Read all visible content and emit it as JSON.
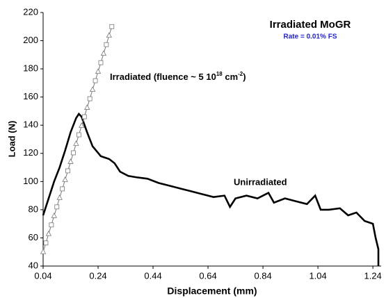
{
  "chart_data": {
    "type": "line",
    "y_label": "Load (N)",
    "x_label": "Displacement (mm)",
    "xlim": [
      0.04,
      1.27
    ],
    "xticks": [
      0.04,
      0.24,
      0.44,
      0.64,
      0.84,
      1.04,
      1.24
    ],
    "ylim": [
      40,
      220
    ],
    "yticks": [
      40,
      60,
      80,
      100,
      120,
      140,
      160,
      180,
      200,
      220
    ],
    "grid": false,
    "series": [
      {
        "color": "#000000",
        "marker": "none",
        "x": [
          0.04,
          0.06,
          0.08,
          0.1,
          0.12,
          0.14,
          0.16,
          0.17,
          0.18,
          0.2,
          0.22,
          0.25,
          0.28,
          0.3,
          0.32,
          0.35,
          0.38,
          0.42,
          0.46,
          0.5,
          0.54,
          0.58,
          0.62,
          0.66,
          0.7,
          0.72,
          0.74,
          0.78,
          0.82,
          0.86,
          0.88,
          0.92,
          0.96,
          1.0,
          1.03,
          1.05,
          1.08,
          1.12,
          1.15,
          1.18,
          1.21,
          1.24,
          1.25,
          1.26,
          1.26
        ],
        "values": [
          76,
          88,
          100,
          110,
          122,
          135,
          145,
          148,
          146,
          135,
          125,
          118,
          116,
          113,
          107,
          104,
          103,
          102,
          99,
          97,
          95,
          93,
          91,
          89,
          90,
          82,
          88,
          90,
          88,
          92,
          85,
          88,
          86,
          84,
          90,
          80,
          80,
          81,
          76,
          78,
          72,
          70,
          60,
          52,
          40
        ]
      },
      {
        "color": "#777777",
        "marker": "triangle-square",
        "x": [
          0.04,
          0.05,
          0.06,
          0.07,
          0.08,
          0.09,
          0.1,
          0.11,
          0.12,
          0.13,
          0.14,
          0.15,
          0.16,
          0.17,
          0.18,
          0.19,
          0.2,
          0.21,
          0.22,
          0.23,
          0.24,
          0.25,
          0.26,
          0.27,
          0.28,
          0.29
        ],
        "values": [
          50,
          56.4,
          62.8,
          69.2,
          75.6,
          82,
          88.4,
          94.8,
          101.2,
          107.6,
          114,
          120.4,
          126.8,
          133.2,
          139.6,
          146,
          152.4,
          158.8,
          165.2,
          171.6,
          178,
          184.4,
          190.8,
          197.2,
          203.6,
          210
        ]
      }
    ],
    "annotations": {
      "title": "Irradiated MoGR",
      "rate": "Rate = 0.01% FS",
      "irradiated": [
        "Irradiated (fluence ~ 5 10",
        "18",
        " cm",
        "-2",
        ")"
      ],
      "unirradiated": "Unirradiated"
    }
  }
}
